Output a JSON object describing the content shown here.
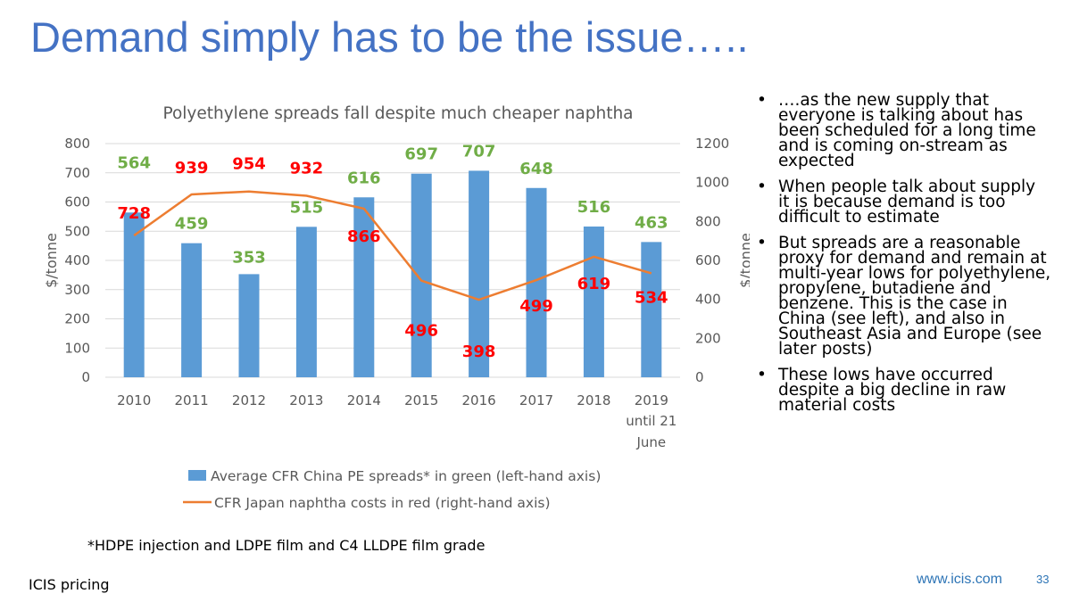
{
  "slide": {
    "title": "Demand simply has to be the issue…..",
    "footnote": "*HDPE injection and LDPE film and C4 LLDPE film grade",
    "source": "ICIS pricing",
    "website": "www.icis.com",
    "page_number": "33"
  },
  "bullets": [
    "….as the new supply that everyone is talking about has been scheduled for a long time and is coming on-stream as expected",
    "When people talk about supply it is because demand is too difficult to estimate",
    "But spreads are a reasonable proxy for demand and remain at multi-year lows for polyethylene, propylene, butadiene and benzene. This is the case in China (see left), and also in Southeast Asia and Europe (see later posts)",
    "These lows have occurred despite a big decline in raw material costs"
  ],
  "bullet_symbol": "•",
  "chart_data": {
    "type": "bar",
    "title": "Polyethylene spreads fall despite much cheaper naphtha",
    "categories": [
      "2010",
      "2011",
      "2012",
      "2013",
      "2014",
      "2015",
      "2016",
      "2017",
      "2018",
      "2019"
    ],
    "category_sublabel": [
      "until 21",
      "June"
    ],
    "ylabel": "$/tonne",
    "ylabel_right": "$/tonne",
    "ylim": [
      0,
      800
    ],
    "yticks": [
      "0",
      "100",
      "200",
      "300",
      "400",
      "500",
      "600",
      "700",
      "800"
    ],
    "ylim_right": [
      0,
      1200
    ],
    "yticks_right": [
      "0",
      "200",
      "400",
      "600",
      "800",
      "1000",
      "1200"
    ],
    "grid": true,
    "legend_position": "bottom",
    "series": [
      {
        "name": "Average CFR China PE spreads* in green (left-hand axis)",
        "type": "bar",
        "axis": "left",
        "values": [
          564,
          459,
          353,
          515,
          616,
          697,
          707,
          648,
          516,
          463
        ],
        "labels": [
          "564",
          "459",
          "353",
          "515",
          "616",
          "697",
          "707",
          "648",
          "516",
          "463"
        ],
        "color": "#5B9BD5",
        "label_color": "#70AD47"
      },
      {
        "name": "CFR Japan naphtha costs in red (right-hand axis)",
        "type": "line",
        "axis": "right",
        "values": [
          728,
          939,
          954,
          932,
          866,
          496,
          398,
          499,
          619,
          534
        ],
        "labels": [
          "728",
          "939",
          "954",
          "932",
          "866",
          "496",
          "398",
          "499",
          "619",
          "534"
        ],
        "color": "#ED7D31",
        "label_color": "#FF0000"
      }
    ]
  }
}
